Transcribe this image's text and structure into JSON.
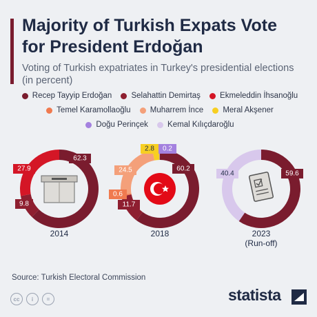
{
  "header": {
    "title": "Majority of Turkish Expats Vote for President Erdoğan",
    "subtitle": "Voting of Turkish expatriates in Turkey's presidential elections (in percent)"
  },
  "legend_items": [
    {
      "name": "Recep Tayyip Erdoğan",
      "color": "#7a1c2e"
    },
    {
      "name": "Selahattin Demirtaş",
      "color": "#8e1f30"
    },
    {
      "name": "Ekmeleddin İhsanoğlu",
      "color": "#d41626"
    },
    {
      "name": "Temel Karamollaoğlu",
      "color": "#f07a4f"
    },
    {
      "name": "Muharrem İnce",
      "color": "#f4a07a"
    },
    {
      "name": "Meral Akşener",
      "color": "#f7cf22"
    },
    {
      "name": "Doğu Perinçek",
      "color": "#a481df"
    },
    {
      "name": "Kemal Kılıçdaroğlu",
      "color": "#d8c8ec"
    }
  ],
  "chart_data": [
    {
      "type": "pie",
      "category": "2014",
      "icon": "ballot-box-icon",
      "slices": [
        {
          "name": "Recep Tayyip Erdoğan",
          "value": 62.3,
          "color": "#7a1c2e"
        },
        {
          "name": "Selahattin Demirtaş",
          "value": 9.8,
          "color": "#8e1f30"
        },
        {
          "name": "Ekmeleddin İhsanoğlu",
          "value": 27.9,
          "color": "#d41626"
        }
      ]
    },
    {
      "type": "pie",
      "category": "2018",
      "icon": "turkish-flag-icon",
      "slices": [
        {
          "name": "Recep Tayyip Erdoğan",
          "value": 60.2,
          "color": "#7a1c2e"
        },
        {
          "name": "Selahattin Demirtaş",
          "value": 11.7,
          "color": "#8e1f30"
        },
        {
          "name": "Temel Karamollaoğlu",
          "value": 0.6,
          "color": "#f07a4f"
        },
        {
          "name": "Muharrem İnce",
          "value": 24.5,
          "color": "#f4a07a"
        },
        {
          "name": "Meral Akşener",
          "value": 2.8,
          "color": "#f7cf22"
        },
        {
          "name": "Doğu Perinçek",
          "value": 0.2,
          "color": "#a481df"
        }
      ]
    },
    {
      "type": "pie",
      "category": "2023",
      "category_note": "(Run-off)",
      "icon": "ballot-paper-icon",
      "slices": [
        {
          "name": "Recep Tayyip Erdoğan",
          "value": 59.6,
          "color": "#7a1c2e"
        },
        {
          "name": "Kemal Kılıçdaroğlu",
          "value": 40.4,
          "color": "#d8c8ec"
        }
      ]
    }
  ],
  "footer": {
    "source": "Source: Turkish Electoral Commission",
    "brand": "statista",
    "license_icons": [
      "cc-icon",
      "attribution-icon",
      "no-derivatives-icon"
    ]
  }
}
